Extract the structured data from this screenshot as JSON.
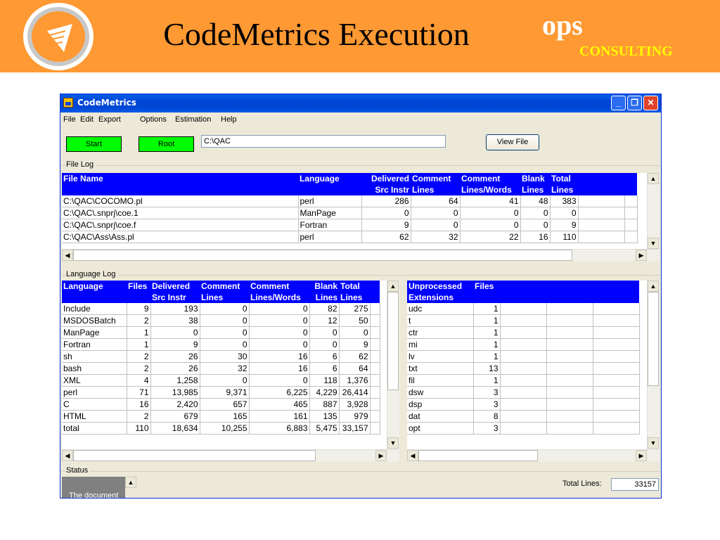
{
  "slide": {
    "title": "CodeMetrics Execution",
    "brand": {
      "ops": "ops",
      "consulting": "CONSULTING"
    }
  },
  "window": {
    "title": "CodeMetrics",
    "menu": [
      "File",
      "Edit",
      "Export",
      "Options",
      "Estimation",
      "Help"
    ],
    "start_label": "Start",
    "root_label": "Root",
    "path_value": "C:\\QAC",
    "view_file_label": "View File"
  },
  "file_log": {
    "group_label": "File Log",
    "headers": [
      {
        "l1": "File Name",
        "l2": ""
      },
      {
        "l1": "Language",
        "l2": ""
      },
      {
        "l1": "Delivered",
        "l2": "Src Instr"
      },
      {
        "l1": "Comment",
        "l2": "Lines"
      },
      {
        "l1": "Comment",
        "l2": "Lines/Words"
      },
      {
        "l1": "Blank",
        "l2": "Lines"
      },
      {
        "l1": "Total",
        "l2": "Lines"
      }
    ],
    "rows": [
      [
        "C:\\QAC\\COCOMO.pl",
        "perl",
        "286",
        "64",
        "41",
        "48",
        "383"
      ],
      [
        "C:\\QAC\\.snprj\\coe.1",
        "ManPage",
        "0",
        "0",
        "0",
        "0",
        "0"
      ],
      [
        "C:\\QAC\\.snprj\\coe.f",
        "Fortran",
        "9",
        "0",
        "0",
        "0",
        "9"
      ],
      [
        "C:\\QAC\\Ass\\Ass.pl",
        "perl",
        "62",
        "32",
        "22",
        "16",
        "110"
      ]
    ]
  },
  "language_log": {
    "group_label": "Language Log",
    "headers": [
      {
        "l1": "Language",
        "l2": ""
      },
      {
        "l1": "Files",
        "l2": ""
      },
      {
        "l1": "Delivered",
        "l2": "Src Instr"
      },
      {
        "l1": "Comment",
        "l2": "Lines"
      },
      {
        "l1": "Comment",
        "l2": "Lines/Words"
      },
      {
        "l1": "Blank",
        "l2": "Lines"
      },
      {
        "l1": "Total",
        "l2": "Lines"
      }
    ],
    "rows": [
      [
        "Include",
        "9",
        "193",
        "0",
        "0",
        "82",
        "275"
      ],
      [
        "MSDOSBatch",
        "2",
        "38",
        "0",
        "0",
        "12",
        "50"
      ],
      [
        "ManPage",
        "1",
        "0",
        "0",
        "0",
        "0",
        "0"
      ],
      [
        "Fortran",
        "1",
        "9",
        "0",
        "0",
        "0",
        "9"
      ],
      [
        "sh",
        "2",
        "26",
        "30",
        "16",
        "6",
        "62"
      ],
      [
        "bash",
        "2",
        "26",
        "32",
        "16",
        "6",
        "64"
      ],
      [
        "XML",
        "4",
        "1,258",
        "0",
        "0",
        "118",
        "1,376"
      ],
      [
        "perl",
        "71",
        "13,985",
        "9,371",
        "6,225",
        "4,229",
        "26,414"
      ],
      [
        "C",
        "16",
        "2,420",
        "657",
        "465",
        "887",
        "3,928"
      ],
      [
        "HTML",
        "2",
        "679",
        "165",
        "161",
        "135",
        "979"
      ],
      [
        "total",
        "110",
        "18,634",
        "10,255",
        "6,883",
        "5,475",
        "33,157"
      ]
    ]
  },
  "unprocessed": {
    "headers": [
      {
        "l1": "Unprocessed",
        "l2": "Extensions"
      },
      {
        "l1": "Files",
        "l2": ""
      }
    ],
    "rows": [
      [
        "udc",
        "1"
      ],
      [
        "t",
        "1"
      ],
      [
        "ctr",
        "1"
      ],
      [
        "mi",
        "1"
      ],
      [
        "lv",
        "1"
      ],
      [
        "txt",
        "13"
      ],
      [
        "fil",
        "1"
      ],
      [
        "dsw",
        "3"
      ],
      [
        "dsp",
        "3"
      ],
      [
        "dat",
        "8"
      ],
      [
        "opt",
        "3"
      ]
    ]
  },
  "status": {
    "group_label": "Status",
    "message": "The document",
    "total_label": "Total Lines:",
    "total_value": "33157"
  }
}
